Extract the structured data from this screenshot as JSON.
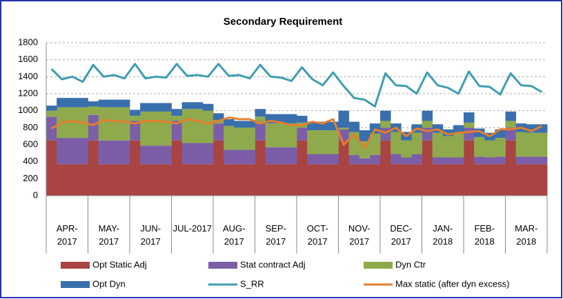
{
  "chart_data": {
    "type": "stacked-area-line",
    "title": "Secondary Requirement",
    "categories": [
      "APR-2017",
      "MAY-2017",
      "JUN-2017",
      "JUL-2017",
      "AUG-2017",
      "SEP-2017",
      "OCT-2017",
      "NOV-2017",
      "DEC-2017",
      "JAN-2018",
      "FEB-2018",
      "MAR-2018"
    ],
    "ylim": [
      0,
      1800
    ],
    "yticks": [
      0,
      200,
      400,
      600,
      800,
      1000,
      1200,
      1400,
      1600,
      1800
    ],
    "grid": true,
    "series": [
      {
        "name": "Opt Static Adj",
        "color": "#a94442",
        "kind": "stack",
        "values": [
          [
            650,
            370,
            370,
            370
          ],
          [
            650,
            370,
            370,
            370
          ],
          [
            650,
            370,
            370,
            370
          ],
          [
            650,
            370,
            370,
            370
          ],
          [
            650,
            370,
            370,
            370
          ],
          [
            650,
            370,
            370,
            370
          ],
          [
            650,
            370,
            370,
            370
          ],
          [
            650,
            370,
            370,
            370
          ],
          [
            650,
            370,
            370,
            370
          ],
          [
            650,
            370,
            370,
            370
          ],
          [
            650,
            370,
            370,
            370
          ],
          [
            650,
            370,
            370,
            370
          ]
        ]
      },
      {
        "name": "Stat contract Adj",
        "color": "#7b5ea7",
        "kind": "stack",
        "values": [
          [
            280,
            310,
            310,
            310
          ],
          [
            300,
            280,
            280,
            280
          ],
          [
            230,
            220,
            220,
            220
          ],
          [
            230,
            250,
            250,
            250
          ],
          [
            200,
            170,
            170,
            170
          ],
          [
            200,
            200,
            200,
            200
          ],
          [
            150,
            120,
            120,
            120
          ],
          [
            130,
            110,
            70,
            110
          ],
          [
            150,
            120,
            80,
            120
          ],
          [
            150,
            80,
            80,
            80
          ],
          [
            150,
            90,
            80,
            90
          ],
          [
            150,
            90,
            90,
            90
          ]
        ]
      },
      {
        "name": "Dyn Ctr",
        "color": "#8faa4c",
        "kind": "stack",
        "values": [
          [
            70,
            360,
            360,
            360
          ],
          [
            100,
            390,
            390,
            390
          ],
          [
            60,
            400,
            400,
            400
          ],
          [
            60,
            400,
            400,
            380
          ],
          [
            40,
            280,
            260,
            260
          ],
          [
            80,
            280,
            280,
            280
          ],
          [
            60,
            280,
            280,
            280
          ],
          [
            20,
            270,
            200,
            250
          ],
          [
            80,
            260,
            200,
            250
          ],
          [
            80,
            290,
            250,
            280
          ],
          [
            60,
            230,
            200,
            220
          ],
          [
            80,
            290,
            280,
            280
          ]
        ]
      },
      {
        "name": "Opt Dyn",
        "color": "#3a6fad",
        "kind": "stack",
        "values": [
          [
            60,
            110,
            110,
            110
          ],
          [
            60,
            90,
            90,
            90
          ],
          [
            70,
            100,
            100,
            100
          ],
          [
            80,
            80,
            80,
            80
          ],
          [
            80,
            80,
            80,
            80
          ],
          [
            90,
            110,
            110,
            110
          ],
          [
            80,
            100,
            100,
            100
          ],
          [
            200,
            120,
            130,
            120
          ],
          [
            120,
            100,
            100,
            100
          ],
          [
            120,
            100,
            80,
            100
          ],
          [
            120,
            100,
            90,
            100
          ],
          [
            110,
            100,
            100,
            100
          ]
        ]
      },
      {
        "name": "S_RR",
        "color": "#3d9db0",
        "kind": "line",
        "values": [
          [
            1490,
            1370,
            1400,
            1340
          ],
          [
            1540,
            1400,
            1420,
            1380
          ],
          [
            1550,
            1380,
            1400,
            1390
          ],
          [
            1550,
            1410,
            1420,
            1400
          ],
          [
            1550,
            1410,
            1420,
            1380
          ],
          [
            1540,
            1400,
            1390,
            1350
          ],
          [
            1510,
            1370,
            1300,
            1450
          ],
          [
            1290,
            1150,
            1130,
            1050
          ],
          [
            1440,
            1300,
            1290,
            1200
          ],
          [
            1450,
            1300,
            1270,
            1200
          ],
          [
            1460,
            1290,
            1280,
            1190
          ],
          [
            1440,
            1300,
            1290,
            1220
          ]
        ]
      },
      {
        "name": "Max static (after dyn excess)",
        "color": "#e57e2e",
        "kind": "line",
        "values": [
          [
            790,
            860,
            880,
            860
          ],
          [
            830,
            890,
            880,
            870
          ],
          [
            850,
            880,
            880,
            870
          ],
          [
            850,
            900,
            880,
            850
          ],
          [
            880,
            920,
            900,
            900
          ],
          [
            850,
            880,
            860,
            830
          ],
          [
            830,
            870,
            850,
            900
          ],
          [
            600,
            720,
            560,
            780
          ],
          [
            740,
            800,
            700,
            790
          ],
          [
            760,
            780,
            720,
            740
          ],
          [
            750,
            760,
            700,
            780
          ],
          [
            780,
            800,
            760,
            820
          ]
        ]
      }
    ]
  }
}
